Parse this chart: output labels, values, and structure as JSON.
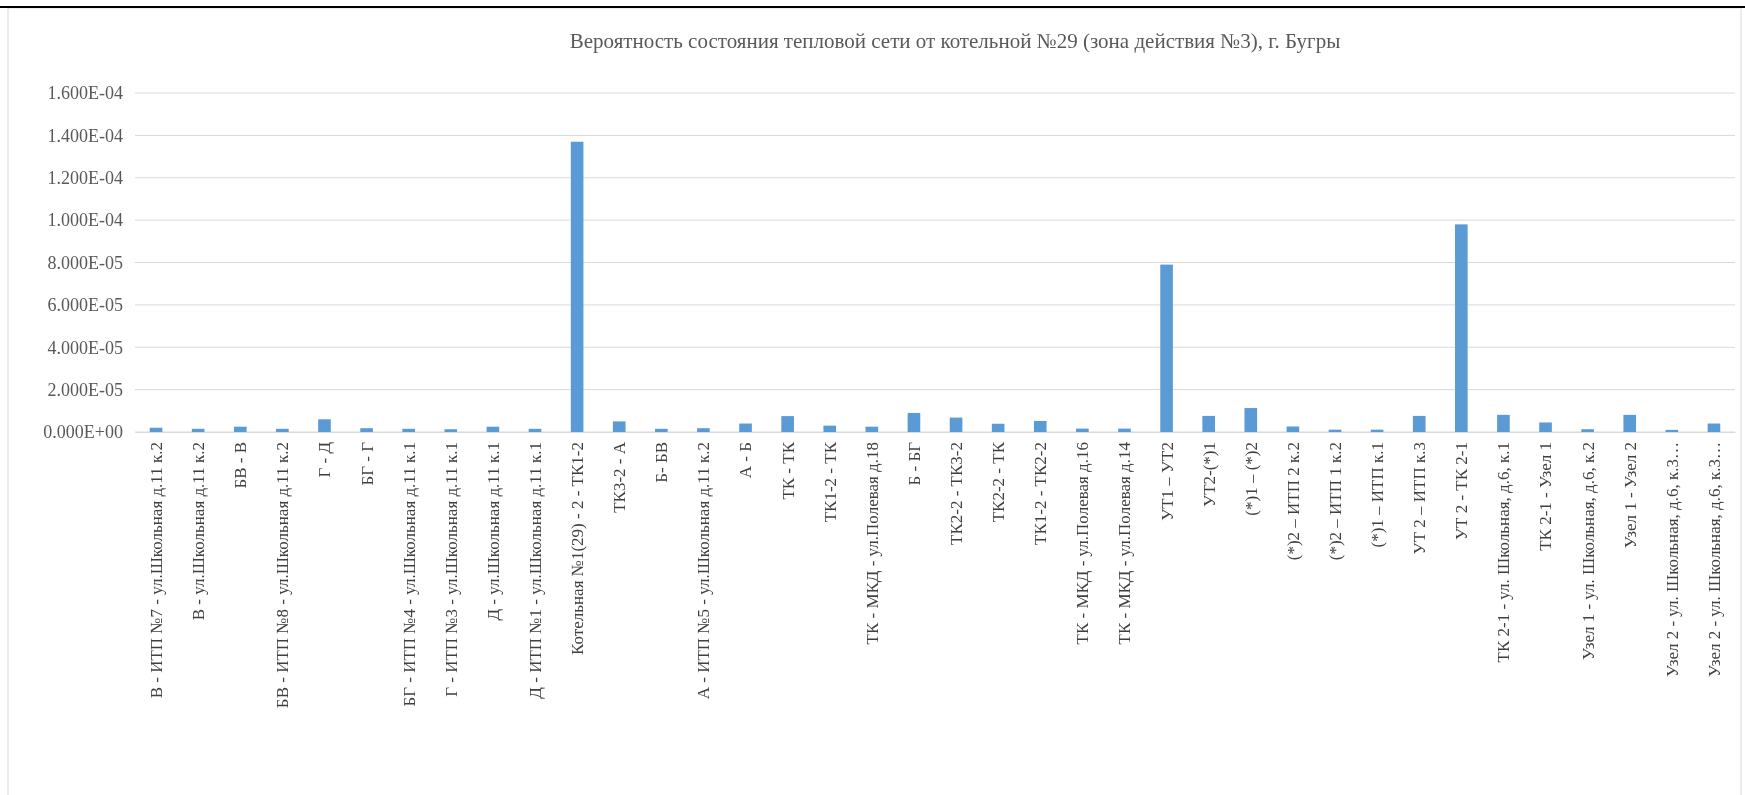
{
  "chart_data": {
    "type": "bar",
    "title": "Вероятность состояния тепловой сети от котельной №29 (зона действия №3), г. Бугры",
    "categories": [
      "В - ИТП №7 - ул.Школьная д.11 к.2",
      "В - ул.Школьная д.11 к.2",
      "БВ - В",
      "БВ - ИТП №8 - ул.Школьная д.11 к.2",
      "Г - Д",
      "БГ - Г",
      "БГ - ИТП №4 - ул.Школьная д.11 к.1",
      "Г - ИТП №3 - ул.Школьная д.11 к.1",
      "Д - ул.Школьная д.11 к.1",
      "Д - ИТП №1 - ул.Школьная д.11 к.1",
      "Котельная №1(29) - 2 - ТК1-2",
      "ТК3-2 - А",
      "Б- БВ",
      "А - ИТП №5 - ул.Школьная д.11 к.2",
      "А - Б",
      "ТК - ТК",
      "ТК1-2 - ТК",
      "ТК - МКД - ул.Полевая д.18",
      "Б - БГ",
      "ТК2-2 - ТК3-2",
      "ТК2-2 - ТК",
      "ТК1-2 - ТК2-2",
      "ТК - МКД - ул.Полевая д.16",
      "ТК - МКД - ул.Полевая д.14",
      "УТ1 – УТ2",
      "УТ2-(*)1",
      "(*)1 – (*)2",
      "(*)2 – ИТП 2 к.2",
      "(*)2 – ИТП 1 к.2",
      "(*)1 – ИТП к.1",
      "УТ 2 – ИТП к.3",
      "УТ 2 - ТК 2-1",
      "ТК 2-1 - ул. Школьная, д.6, к.1",
      "ТК 2-1 - Узел 1",
      "Узел 1 - ул. Школьная, д.6, к.2",
      "Узел 1 - Узел 2",
      "Узел 2 - ул. Школьная, д.6, к.3…",
      "Узел 2 - ул. Школьная, д.6, к.3…"
    ],
    "values": [
      2e-06,
      1.5e-06,
      2.5e-06,
      1.5e-06,
      6e-06,
      1.8e-06,
      1.5e-06,
      1.3e-06,
      2.5e-06,
      1.5e-06,
      0.000137,
      5e-06,
      1.5e-06,
      1.8e-06,
      4e-06,
      7.5e-06,
      3e-06,
      2.5e-06,
      9e-06,
      6.8e-06,
      3.9e-06,
      5.2e-06,
      1.6e-06,
      1.6e-06,
      7.9e-05,
      7.6e-06,
      1.13e-05,
      2.6e-06,
      1.1e-06,
      1.1e-06,
      7.6e-06,
      9.8e-05,
      8.1e-06,
      4.5e-06,
      1.3e-06,
      8.1e-06,
      1e-06,
      4e-06
    ],
    "color": "#5b9bd5",
    "ylim": [
      0,
      0.00016
    ],
    "yticks": [
      {
        "value": 0,
        "label": "0.000E+00"
      },
      {
        "value": 2e-05,
        "label": "2.000E-05"
      },
      {
        "value": 4e-05,
        "label": "4.000E-05"
      },
      {
        "value": 6e-05,
        "label": "6.000E-05"
      },
      {
        "value": 8e-05,
        "label": "8.000E-05"
      },
      {
        "value": 0.0001,
        "label": "1.000E-04"
      },
      {
        "value": 0.00012,
        "label": "1.200E-04"
      },
      {
        "value": 0.00014,
        "label": "1.400E-04"
      },
      {
        "value": 0.00016,
        "label": "1.600E-04"
      }
    ],
    "grid": "y"
  }
}
